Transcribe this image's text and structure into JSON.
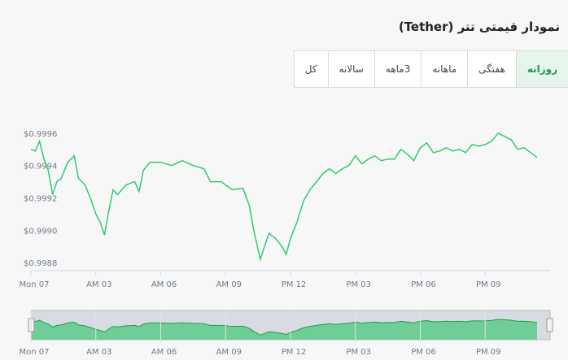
{
  "title": "نمودار قیمتی تتر (Tether)",
  "tabs": [
    {
      "label": "روزانه",
      "active": true
    },
    {
      "label": "هفتگی",
      "active": false
    },
    {
      "label": "ماهانه",
      "active": false
    },
    {
      "label": "3ماهه",
      "active": false
    },
    {
      "label": "سالانه",
      "active": false
    },
    {
      "label": "کل",
      "active": false
    }
  ],
  "colors": {
    "line": "#2ecc71",
    "accent": "#1f9a4e",
    "navigator_fill": "#4cc97e"
  },
  "chart_data": {
    "type": "line",
    "title": "",
    "xlabel": "",
    "ylabel": "",
    "ylim": [
      0.99875,
      0.99972
    ],
    "xlim": [
      0,
      24
    ],
    "yticks": [
      0.9988,
      0.999,
      0.9992,
      0.9994,
      0.9996
    ],
    "ytick_labels": [
      "$0.9988",
      "$0.9990",
      "$0.9992",
      "$0.9994",
      "$0.9996"
    ],
    "xticks": [
      0,
      3,
      6,
      9,
      12,
      15,
      18,
      21
    ],
    "xtick_labels": [
      "Mon 07",
      "AM 03",
      "AM 06",
      "AM 09",
      "PM 12",
      "PM 03",
      "PM 06",
      "PM 09"
    ],
    "grid": false,
    "series": [
      {
        "values": [
          [
            0.0,
            0.9995
          ],
          [
            0.2,
            0.99949
          ],
          [
            0.4,
            0.99955
          ],
          [
            0.6,
            0.99944
          ],
          [
            0.8,
            0.99937
          ],
          [
            1.0,
            0.99922
          ],
          [
            1.2,
            0.9993
          ],
          [
            1.4,
            0.99932
          ],
          [
            1.7,
            0.99942
          ],
          [
            2.0,
            0.99946
          ],
          [
            2.2,
            0.99932
          ],
          [
            2.5,
            0.99928
          ],
          [
            2.8,
            0.99918
          ],
          [
            3.0,
            0.9991
          ],
          [
            3.2,
            0.99905
          ],
          [
            3.4,
            0.99897
          ],
          [
            3.6,
            0.99912
          ],
          [
            3.8,
            0.99925
          ],
          [
            4.0,
            0.99922
          ],
          [
            4.4,
            0.99928
          ],
          [
            4.8,
            0.9993
          ],
          [
            5.0,
            0.99924
          ],
          [
            5.2,
            0.99937
          ],
          [
            5.5,
            0.99942
          ],
          [
            6.0,
            0.99942
          ],
          [
            6.5,
            0.9994
          ],
          [
            7.0,
            0.99943
          ],
          [
            7.5,
            0.9994
          ],
          [
            8.0,
            0.99938
          ],
          [
            8.3,
            0.9993
          ],
          [
            8.8,
            0.9993
          ],
          [
            9.3,
            0.99925
          ],
          [
            9.8,
            0.99926
          ],
          [
            10.1,
            0.99915
          ],
          [
            10.3,
            0.999
          ],
          [
            10.6,
            0.99882
          ],
          [
            10.8,
            0.9989
          ],
          [
            11.0,
            0.99898
          ],
          [
            11.3,
            0.99895
          ],
          [
            11.6,
            0.9989
          ],
          [
            11.8,
            0.99885
          ],
          [
            12.0,
            0.99895
          ],
          [
            12.3,
            0.99905
          ],
          [
            12.6,
            0.99918
          ],
          [
            12.9,
            0.99925
          ],
          [
            13.2,
            0.9993
          ],
          [
            13.5,
            0.99935
          ],
          [
            13.8,
            0.99938
          ],
          [
            14.1,
            0.99935
          ],
          [
            14.4,
            0.99938
          ],
          [
            14.7,
            0.9994
          ],
          [
            15.0,
            0.99946
          ],
          [
            15.3,
            0.99941
          ],
          [
            15.6,
            0.99944
          ],
          [
            15.9,
            0.99946
          ],
          [
            16.2,
            0.99943
          ],
          [
            16.5,
            0.99944
          ],
          [
            16.8,
            0.99944
          ],
          [
            17.1,
            0.9995
          ],
          [
            17.4,
            0.99947
          ],
          [
            17.7,
            0.99943
          ],
          [
            18.0,
            0.99951
          ],
          [
            18.3,
            0.99954
          ],
          [
            18.6,
            0.99948
          ],
          [
            18.9,
            0.99949
          ],
          [
            19.2,
            0.99951
          ],
          [
            19.5,
            0.99949
          ],
          [
            19.8,
            0.9995
          ],
          [
            20.1,
            0.99948
          ],
          [
            20.4,
            0.99953
          ],
          [
            20.7,
            0.99952
          ],
          [
            21.0,
            0.99953
          ],
          [
            21.3,
            0.99955
          ],
          [
            21.6,
            0.9996
          ],
          [
            21.9,
            0.99958
          ],
          [
            22.2,
            0.99956
          ],
          [
            22.5,
            0.9995
          ],
          [
            22.8,
            0.99951
          ],
          [
            23.1,
            0.99948
          ],
          [
            23.4,
            0.99945
          ]
        ]
      }
    ]
  }
}
